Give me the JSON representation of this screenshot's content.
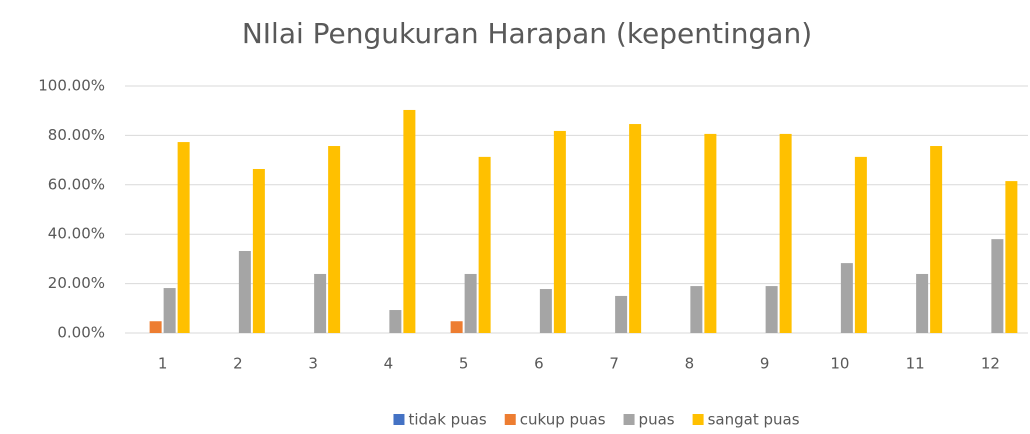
{
  "chart_data": {
    "type": "bar",
    "title": "NIlai Pengukuran Harapan (kepentingan)",
    "categories": [
      "1",
      "2",
      "3",
      "4",
      "5",
      "6",
      "7",
      "8",
      "9",
      "10",
      "11",
      "12"
    ],
    "series": [
      {
        "name": "tidak puas",
        "color": "#4472c4",
        "values": [
          0,
          0,
          0,
          0,
          0,
          0,
          0,
          0,
          0,
          0,
          0,
          0
        ]
      },
      {
        "name": "cukup puas",
        "color": "#ed7d31",
        "values": [
          4.76,
          0,
          0,
          0,
          4.76,
          0,
          0,
          0,
          0,
          0,
          0,
          0
        ]
      },
      {
        "name": "puas",
        "color": "#a5a5a5",
        "values": [
          18.2,
          33.2,
          23.9,
          9.3,
          23.9,
          17.8,
          15,
          19,
          19,
          28.3,
          23.9,
          38
        ]
      },
      {
        "name": "sangat puas",
        "color": "#ffc000",
        "values": [
          77.3,
          66.4,
          75.7,
          90.3,
          71.3,
          81.8,
          84.6,
          80.6,
          80.6,
          71.3,
          75.7,
          61.5
        ]
      }
    ],
    "ylim": [
      0,
      100
    ],
    "yticks": [
      {
        "value": 0,
        "label": "0.00%"
      },
      {
        "value": 20,
        "label": "20.00%"
      },
      {
        "value": 40,
        "label": "40.00%"
      },
      {
        "value": 60,
        "label": "60.00%"
      },
      {
        "value": 80,
        "label": "80.00%"
      },
      {
        "value": 100,
        "label": "100.00%"
      }
    ],
    "grid": true,
    "legend": "bottom"
  }
}
